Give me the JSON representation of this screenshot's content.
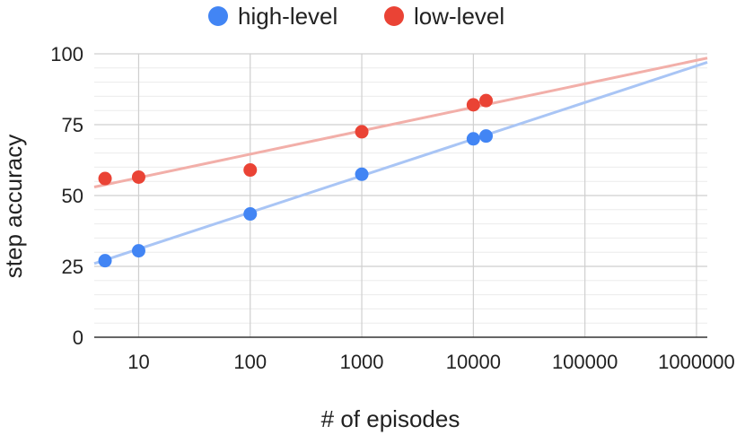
{
  "chart_data": {
    "type": "scatter",
    "title": "",
    "xlabel": "# of episodes",
    "ylabel": "step accuracy",
    "x_scale": "log10",
    "xlim": [
      4,
      1250000
    ],
    "ylim": [
      0,
      100
    ],
    "x_ticks": [
      10,
      100,
      1000,
      10000,
      100000,
      1000000
    ],
    "x_tick_labels": [
      "10",
      "100",
      "1000",
      "10000",
      "100000",
      "1000000"
    ],
    "y_ticks": [
      0,
      25,
      50,
      75,
      100
    ],
    "y_tick_labels": [
      "0",
      "25",
      "50",
      "75",
      "100"
    ],
    "grid": true,
    "legend_position": "top",
    "series": [
      {
        "name": "high-level",
        "color": "#4285F4",
        "trendline_color": "#A9C5F5",
        "trendline": [
          [
            4,
            26
          ],
          [
            1250000,
            97
          ]
        ],
        "points": [
          [
            5,
            27
          ],
          [
            10,
            30.5
          ],
          [
            100,
            43.5
          ],
          [
            1000,
            57.5
          ],
          [
            10000,
            70
          ],
          [
            13000,
            71
          ]
        ]
      },
      {
        "name": "low-level",
        "color": "#EA4335",
        "trendline_color": "#F2AFA9",
        "trendline": [
          [
            4,
            53
          ],
          [
            1250000,
            98.5
          ]
        ],
        "points": [
          [
            5,
            56
          ],
          [
            10,
            56.5
          ],
          [
            100,
            59
          ],
          [
            1000,
            72.5
          ],
          [
            10000,
            82
          ],
          [
            13000,
            83.5
          ]
        ]
      }
    ]
  }
}
